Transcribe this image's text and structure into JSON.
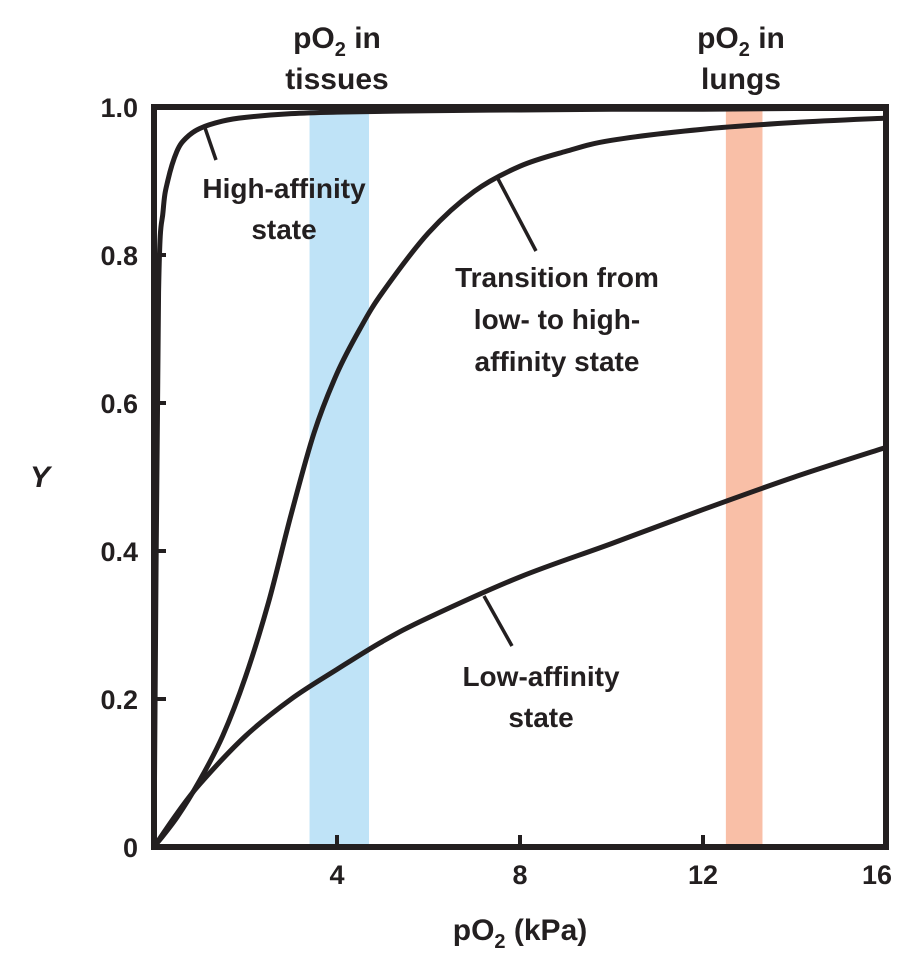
{
  "chart_data": {
    "type": "line",
    "title": "",
    "xlabel": {
      "base": "pO",
      "sub": "2",
      "rest": " (kPa)"
    },
    "ylabel": "Y",
    "xlim": [
      0,
      16
    ],
    "ylim": [
      0,
      1.0
    ],
    "x_ticks": [
      {
        "value": 4,
        "label": "4"
      },
      {
        "value": 8,
        "label": "8"
      },
      {
        "value": 12,
        "label": "12"
      },
      {
        "value": 16,
        "label": "16"
      }
    ],
    "y_ticks": [
      {
        "value": 0,
        "label": "0"
      },
      {
        "value": 0.2,
        "label": "0.2"
      },
      {
        "value": 0.4,
        "label": "0.4"
      },
      {
        "value": 0.6,
        "label": "0.6"
      },
      {
        "value": 0.8,
        "label": "0.8"
      },
      {
        "value": 1.0,
        "label": "1.0"
      }
    ],
    "bands": [
      {
        "name": "tissues",
        "x_range": [
          3.4,
          4.7
        ],
        "color": "#bfe3f7",
        "label": {
          "base": "pO",
          "sub": "2",
          "rest": " in",
          "line2": "tissues"
        }
      },
      {
        "name": "lungs",
        "x_range": [
          12.5,
          13.3
        ],
        "color": "#f9bfa7",
        "label": {
          "base": "pO",
          "sub": "2",
          "rest": " in",
          "line2": "lungs"
        }
      }
    ],
    "series": [
      {
        "id": "high",
        "x": [
          0,
          0.1,
          0.2,
          0.3,
          0.5,
          0.7,
          1.0,
          1.5,
          2.0,
          3.0,
          4.0,
          6.0,
          8.0,
          10.0,
          12.0,
          14.0,
          16.0
        ],
        "y": [
          0,
          0.75,
          0.86,
          0.9,
          0.94,
          0.958,
          0.971,
          0.981,
          0.986,
          0.991,
          0.993,
          0.995,
          0.996,
          0.997,
          0.997,
          0.998,
          0.998
        ]
      },
      {
        "id": "transition",
        "x": [
          0,
          0.5,
          1.0,
          1.5,
          2.0,
          2.5,
          3.0,
          3.5,
          4.0,
          4.5,
          5.0,
          6.0,
          7.0,
          8.0,
          9.0,
          10.0,
          12.0,
          14.0,
          16.0
        ],
        "y": [
          0,
          0.04,
          0.09,
          0.15,
          0.23,
          0.33,
          0.45,
          0.56,
          0.64,
          0.7,
          0.75,
          0.83,
          0.886,
          0.92,
          0.94,
          0.955,
          0.97,
          0.979,
          0.985
        ]
      },
      {
        "id": "low",
        "x": [
          0,
          0.5,
          1.0,
          2.0,
          3.0,
          4.0,
          5.0,
          6.0,
          8.0,
          10.0,
          12.0,
          14.0,
          16.0
        ],
        "y": [
          0,
          0.045,
          0.085,
          0.15,
          0.2,
          0.24,
          0.278,
          0.31,
          0.365,
          0.41,
          0.456,
          0.5,
          0.54
        ]
      }
    ],
    "annotations": [
      {
        "id": "high",
        "lines": [
          "High-affinity",
          "state"
        ]
      },
      {
        "id": "transition",
        "lines": [
          "Transition from",
          "low- to high-",
          "affinity state"
        ]
      },
      {
        "id": "low",
        "lines": [
          "Low-affinity",
          "state"
        ]
      }
    ],
    "grid": false,
    "line_color": "#231f20"
  }
}
